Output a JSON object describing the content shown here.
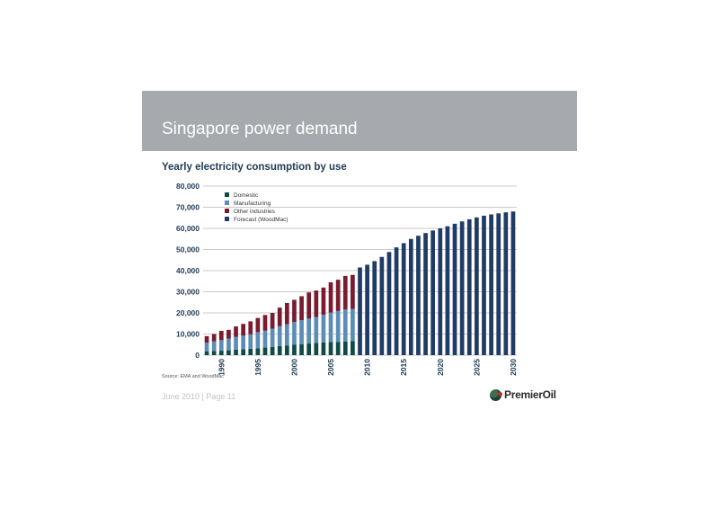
{
  "slide": {
    "title": "Singapore power demand",
    "source": "Source: EMA and WoodMac",
    "footer": "June 2010 | Page 11",
    "logo_text": "PremierOil",
    "logo_icon": "premier-oil-logo-icon"
  },
  "chart_data": {
    "type": "bar",
    "stacked": true,
    "title": "Yearly electricity consumption by use",
    "xlabel": "",
    "ylabel": "",
    "ylim": [
      0,
      80000
    ],
    "yticks": [
      "0",
      "10,000",
      "20,000",
      "30,000",
      "40,000",
      "50,000",
      "60,000",
      "70,000",
      "80,000"
    ],
    "x_tick_labels": [
      "1990",
      "1995",
      "2000",
      "2005",
      "2010",
      "2015",
      "2020",
      "2025",
      "2030"
    ],
    "grid": true,
    "legend_position": "top-left",
    "categories": [
      1988,
      1989,
      1990,
      1991,
      1992,
      1993,
      1994,
      1995,
      1996,
      1997,
      1998,
      1999,
      2000,
      2001,
      2002,
      2003,
      2004,
      2005,
      2006,
      2007,
      2008,
      2009,
      2010,
      2011,
      2012,
      2013,
      2014,
      2015,
      2016,
      2017,
      2018,
      2019,
      2020,
      2021,
      2022,
      2023,
      2024,
      2025,
      2026,
      2027,
      2028,
      2029,
      2030
    ],
    "series": [
      {
        "name": "Domestic",
        "color": "#0f4a44",
        "values": [
          1700,
          1900,
          2100,
          2300,
          2600,
          2800,
          3000,
          3300,
          3600,
          3900,
          4300,
          4600,
          4900,
          5200,
          5500,
          5800,
          6000,
          6200,
          6300,
          6500,
          6700,
          null,
          null,
          null,
          null,
          null,
          null,
          null,
          null,
          null,
          null,
          null,
          null,
          null,
          null,
          null,
          null,
          null,
          null,
          null,
          null,
          null,
          null
        ]
      },
      {
        "name": "Manufacturing",
        "color": "#5b8db8",
        "values": [
          4200,
          4600,
          5000,
          5500,
          6000,
          6400,
          6900,
          7500,
          8000,
          8600,
          9400,
          10000,
          10800,
          11400,
          11800,
          12300,
          13100,
          14000,
          14600,
          15200,
          15200,
          null,
          null,
          null,
          null,
          null,
          null,
          null,
          null,
          null,
          null,
          null,
          null,
          null,
          null,
          null,
          null,
          null,
          null,
          null,
          null,
          null,
          null
        ]
      },
      {
        "name": "Other industries",
        "color": "#7a1c30",
        "values": [
          3100,
          3500,
          4400,
          4200,
          5000,
          5600,
          6100,
          6800,
          7400,
          7500,
          8800,
          10100,
          10500,
          11300,
          12400,
          12500,
          12900,
          14300,
          14800,
          15800,
          16100,
          null,
          null,
          null,
          null,
          null,
          null,
          null,
          null,
          null,
          null,
          null,
          null,
          null,
          null,
          null,
          null,
          null,
          null,
          null,
          null,
          null,
          null
        ]
      },
      {
        "name": "Forecast (WoodMac)",
        "color": "#1f3b66",
        "values": [
          null,
          null,
          null,
          null,
          null,
          null,
          null,
          null,
          null,
          null,
          null,
          null,
          null,
          null,
          null,
          null,
          null,
          null,
          null,
          null,
          null,
          41500,
          42800,
          44500,
          46500,
          48800,
          51000,
          53000,
          55000,
          56500,
          57800,
          59000,
          60000,
          61000,
          62200,
          63300,
          64300,
          65200,
          66000,
          66600,
          67100,
          67600,
          68000
        ]
      }
    ]
  }
}
